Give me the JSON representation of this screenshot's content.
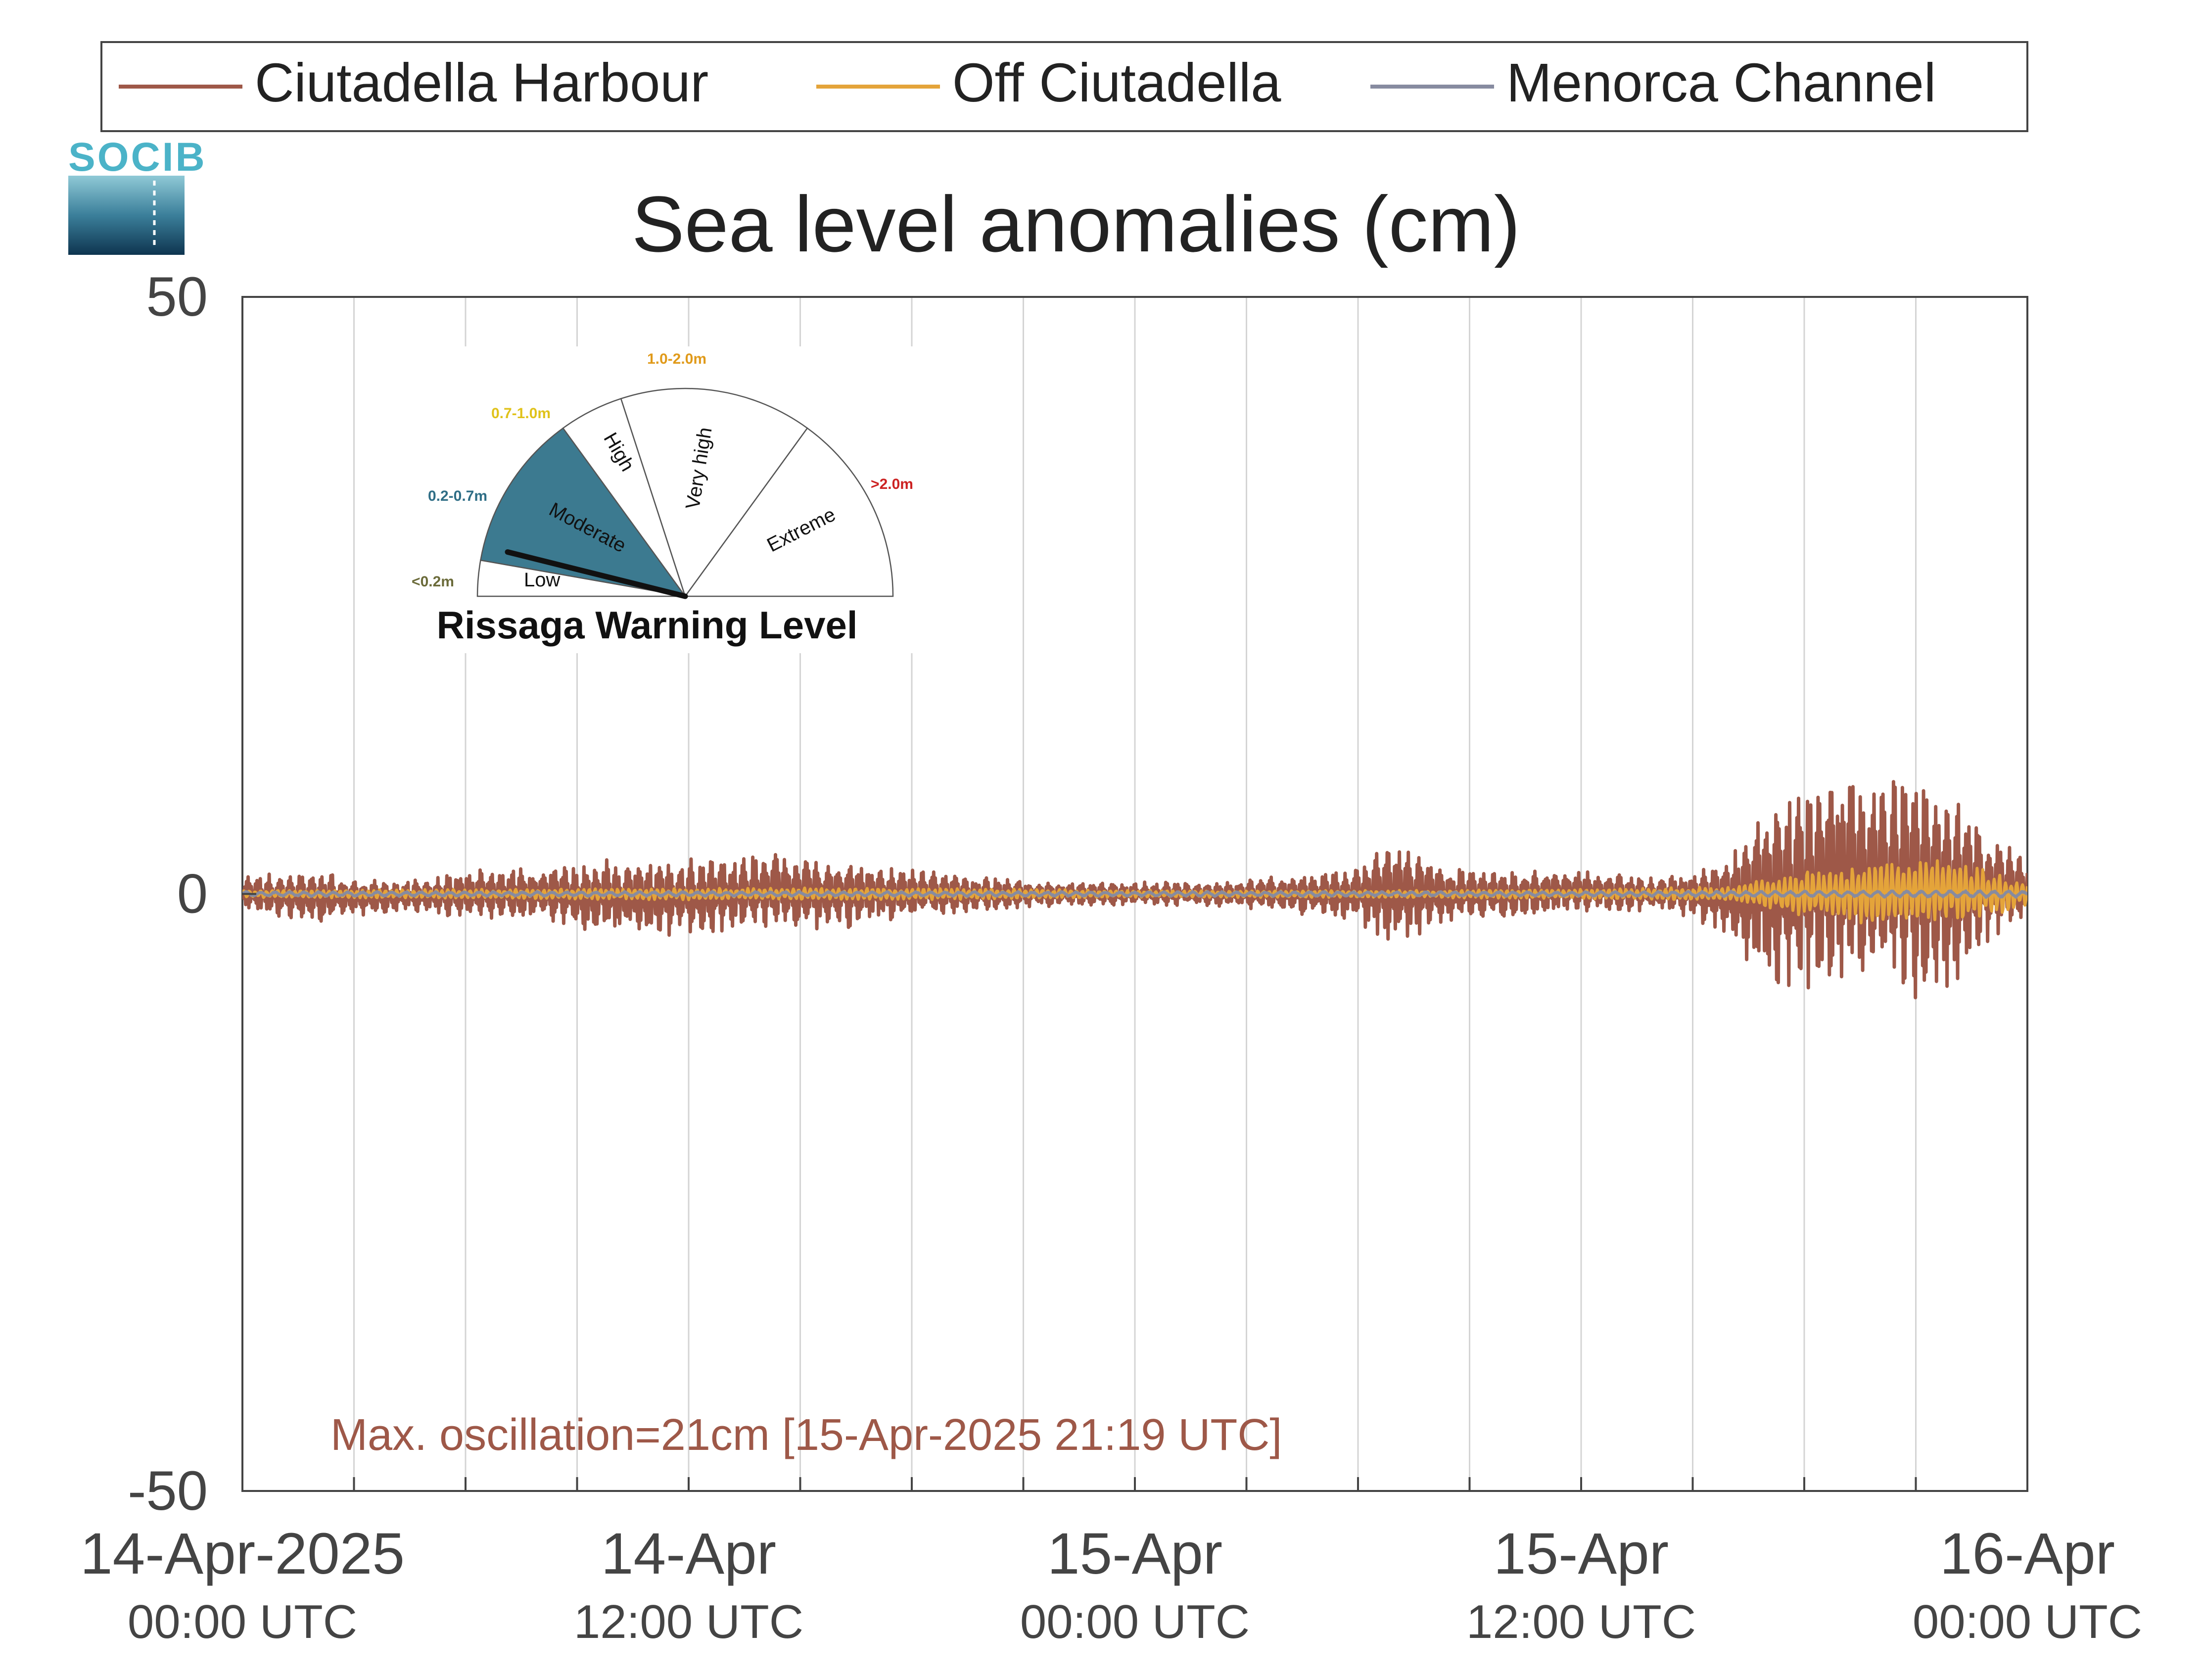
{
  "logo_text": "SOCIB",
  "colors": {
    "harbour": "#9e5848",
    "off": "#e4a43a",
    "channel": "#878ba0",
    "axis": "#444444",
    "grid": "#d4d4d4",
    "moderate_fill": "#3c7a90",
    "low_label": "#6b6b3a",
    "moderate_label": "#2f6e86",
    "high_label": "#e0c21a",
    "veryhigh_label": "#e09a1a",
    "extreme_label": "#cc2222"
  },
  "warning_gauge": {
    "title": "Rissaga Warning Level",
    "current_level": "Moderate",
    "segments": [
      {
        "name": "Low",
        "range": "<0.2m"
      },
      {
        "name": "Moderate",
        "range": "0.2-0.7m"
      },
      {
        "name": "High",
        "range": "0.7-1.0m"
      },
      {
        "name": "Very high",
        "range": "1.0-2.0m"
      },
      {
        "name": "Extreme",
        "range": ">2.0m"
      }
    ]
  },
  "chart_data": {
    "type": "line",
    "title": "Sea level anomalies (cm)",
    "xlabel": "",
    "ylabel": "",
    "ylim": [
      -50,
      50
    ],
    "yticks": [
      -50,
      0,
      50
    ],
    "xlim": [
      "14-Apr-2025 00:00",
      "16-Apr-2025 00:00"
    ],
    "xticks": [
      {
        "label": "14-Apr-2025",
        "sub": "00:00 UTC"
      },
      {
        "label": "14-Apr",
        "sub": "12:00 UTC"
      },
      {
        "label": "15-Apr",
        "sub": "00:00 UTC"
      },
      {
        "label": "15-Apr",
        "sub": "12:00 UTC"
      },
      {
        "label": "16-Apr",
        "sub": "00:00 UTC"
      }
    ],
    "grid": "vertical",
    "legend": "top",
    "annotation": "Max. oscillation=21cm [15-Apr-2025 21:19 UTC]",
    "series": [
      {
        "name": "Ciutadella Harbour",
        "envelope_x_hours": [
          0,
          2,
          4,
          6,
          8,
          10,
          12,
          14,
          16,
          18,
          20,
          22,
          24,
          26,
          28,
          30,
          31,
          32,
          33,
          34,
          36,
          38,
          39,
          40,
          41,
          42,
          43,
          44,
          45,
          46,
          47,
          48
        ],
        "envelope_max": [
          1.5,
          2,
          1,
          2,
          2.5,
          3,
          3,
          3.5,
          3,
          2,
          1.5,
          1,
          1,
          1,
          1.5,
          2.5,
          4.5,
          3,
          2,
          2,
          2,
          1.5,
          2,
          3.5,
          8,
          9,
          11,
          9,
          11,
          9,
          5,
          3
        ],
        "envelope_min": [
          -1.5,
          -2.5,
          -1.5,
          -2,
          -2.5,
          -3.5,
          -3.5,
          -3,
          -3,
          -2,
          -1.5,
          -1,
          -1,
          -1,
          -1.5,
          -2.5,
          -4.5,
          -3,
          -2,
          -2,
          -1.5,
          -1.5,
          -2,
          -4,
          -8,
          -8.5,
          -8.5,
          -7,
          -9.5,
          -8,
          -4,
          -2
        ]
      },
      {
        "name": "Off Ciutadella",
        "envelope_x_hours": [
          0,
          6,
          12,
          18,
          24,
          30,
          36,
          40,
          42,
          43,
          44,
          45,
          46,
          47,
          48
        ],
        "envelope_max": [
          0.3,
          0.4,
          0.5,
          0.5,
          0.3,
          0.3,
          0.4,
          0.6,
          2,
          2,
          3,
          3,
          3,
          2,
          1
        ],
        "envelope_min": [
          -0.3,
          -0.4,
          -0.5,
          -0.5,
          -0.3,
          -0.3,
          -0.4,
          -0.6,
          -2,
          -2,
          -3,
          -2.5,
          -2.5,
          -2,
          -1
        ]
      },
      {
        "name": "Menorca Channel",
        "envelope_x_hours": [
          0,
          12,
          24,
          36,
          48
        ],
        "envelope_max": [
          0.2,
          0.2,
          0.2,
          0.2,
          0.3
        ],
        "envelope_min": [
          -0.2,
          -0.2,
          -0.2,
          -0.2,
          -0.3
        ]
      }
    ]
  }
}
